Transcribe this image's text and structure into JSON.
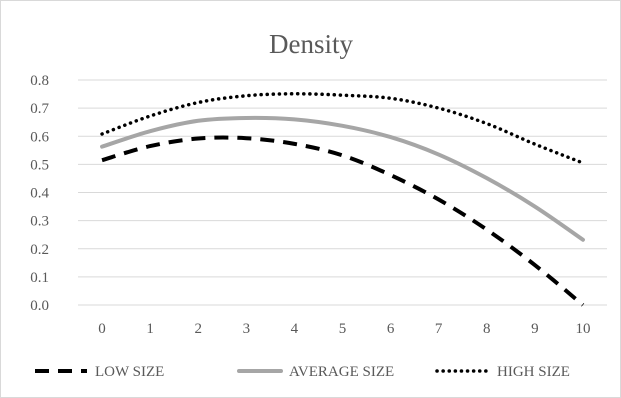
{
  "chart_data": {
    "type": "line",
    "title": "Density",
    "xlabel": "",
    "ylabel": "",
    "x": [
      0,
      1,
      2,
      3,
      4,
      5,
      6,
      7,
      8,
      9,
      10
    ],
    "ylim": [
      0,
      0.8
    ],
    "yticks": [
      "0.0",
      "0.1",
      "0.2",
      "0.3",
      "0.4",
      "0.5",
      "0.6",
      "0.7",
      "0.8"
    ],
    "xticks": [
      "0",
      "1",
      "2",
      "3",
      "4",
      "5",
      "6",
      "7",
      "8",
      "9",
      "10"
    ],
    "grid": "horizontal",
    "legend_position": "bottom",
    "series": [
      {
        "name": "LOW SIZE",
        "style": "dashed",
        "color": "#000000",
        "values": [
          0.515,
          0.565,
          0.592,
          0.593,
          0.573,
          0.532,
          0.462,
          0.375,
          0.268,
          0.142,
          0.0
        ]
      },
      {
        "name": "AVERAGE SIZE",
        "style": "solid",
        "color": "#a6a6a6",
        "values": [
          0.563,
          0.618,
          0.655,
          0.665,
          0.66,
          0.637,
          0.597,
          0.535,
          0.451,
          0.35,
          0.232
        ]
      },
      {
        "name": "HIGH SIZE",
        "style": "dotted",
        "color": "#000000",
        "values": [
          0.608,
          0.672,
          0.72,
          0.744,
          0.751,
          0.746,
          0.735,
          0.7,
          0.645,
          0.572,
          0.505
        ]
      }
    ]
  }
}
